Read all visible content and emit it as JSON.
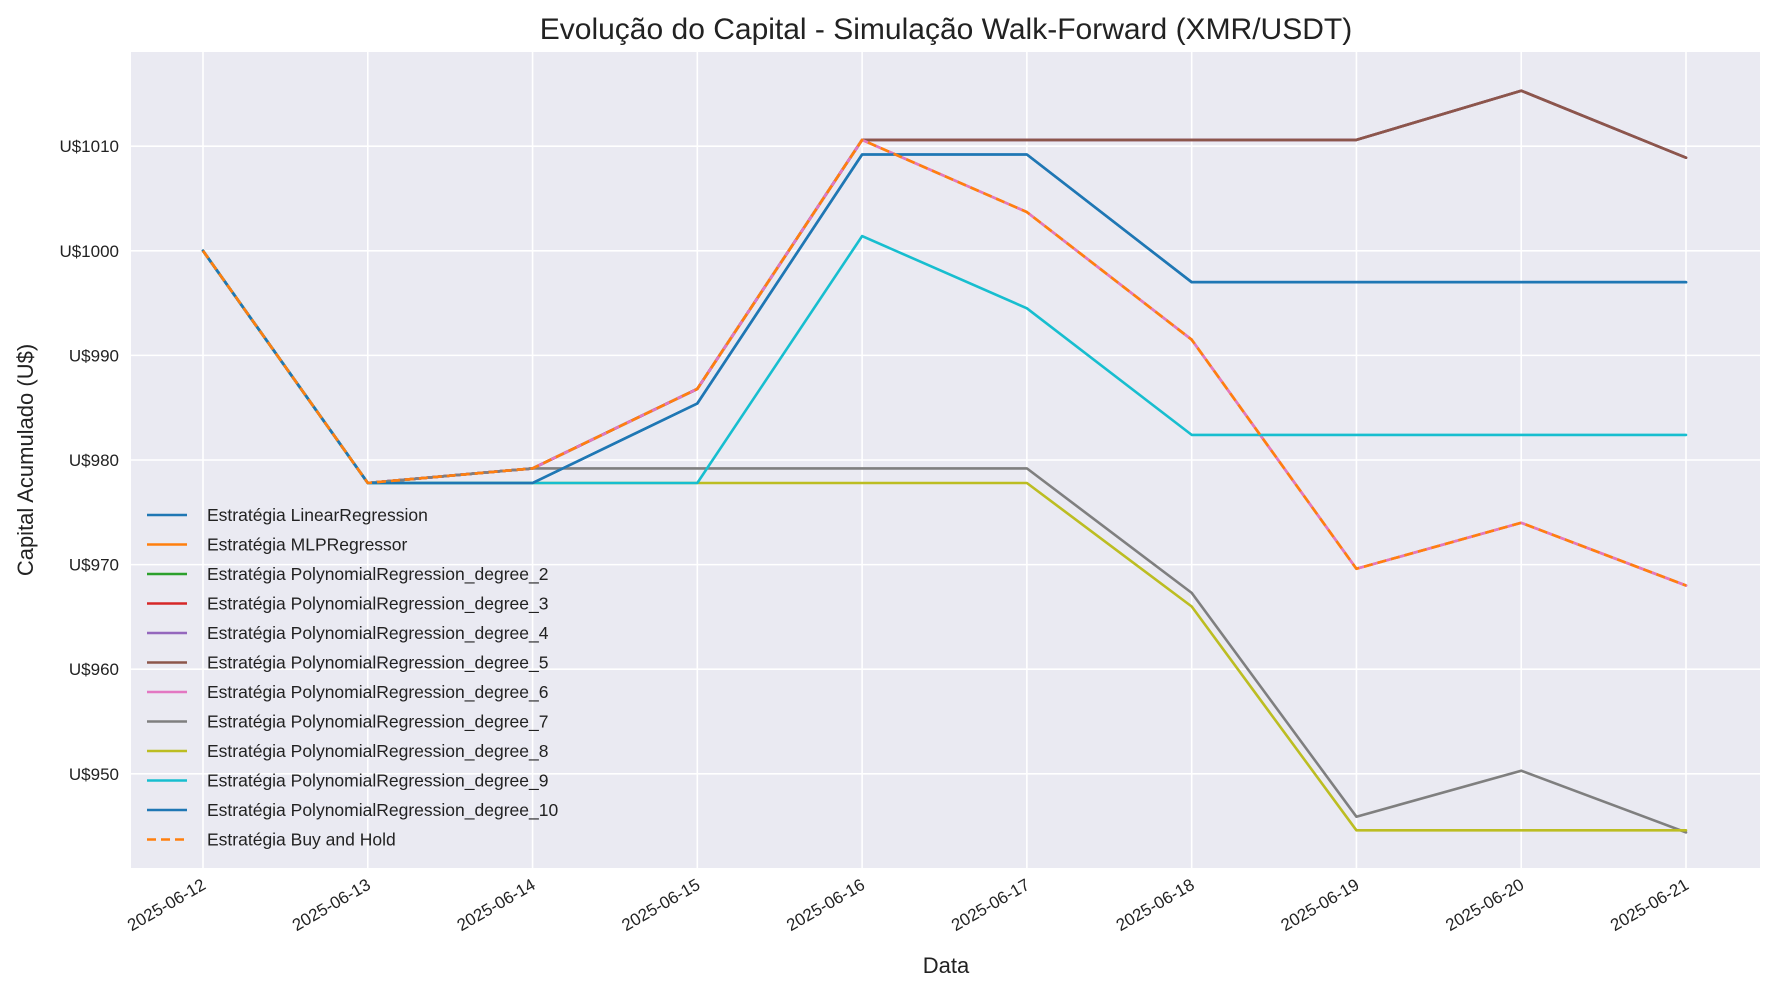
{
  "chart_data": {
    "type": "line",
    "title": "Evolução do Capital - Simulação Walk-Forward (XMR/USDT)",
    "xlabel": "Data",
    "ylabel": "Capital Acumulado (U$)",
    "x": [
      "2025-06-12",
      "2025-06-13",
      "2025-06-14",
      "2025-06-15",
      "2025-06-16",
      "2025-06-17",
      "2025-06-18",
      "2025-06-19",
      "2025-06-20",
      "2025-06-21"
    ],
    "ylim": [
      941,
      1019
    ],
    "yticks": [
      950,
      960,
      970,
      980,
      990,
      1000,
      1010
    ],
    "ytick_labels": [
      "U$950",
      "U$960",
      "U$970",
      "U$980",
      "U$990",
      "U$1000",
      "U$1010"
    ],
    "grid": true,
    "legend_position": "lower-left",
    "series": [
      {
        "name": "Estratégia LinearRegression",
        "color": "#1f77b4",
        "dash": "solid",
        "values": [
          1000,
          977.8,
          977.8,
          985.4,
          1009.2,
          1009.2,
          997.0,
          997.0,
          997.0,
          997.0
        ]
      },
      {
        "name": "Estratégia MLPRegressor",
        "color": "#ff7f0e",
        "dash": "solid",
        "values": [
          1000,
          977.8,
          979.2,
          986.8,
          1010.6,
          1003.7,
          991.5,
          969.6,
          974.0,
          968.0
        ]
      },
      {
        "name": "Estratégia PolynomialRegression_degree_2",
        "color": "#2ca02c",
        "dash": "solid",
        "values": [
          1000,
          977.8,
          979.2,
          986.8,
          1010.6,
          1010.6,
          1010.6,
          1010.6,
          1015.3,
          1008.9
        ]
      },
      {
        "name": "Estratégia PolynomialRegression_degree_3",
        "color": "#d62728",
        "dash": "solid",
        "values": [
          1000,
          977.8,
          979.2,
          986.8,
          1010.6,
          1010.6,
          1010.6,
          1010.6,
          1015.3,
          1008.9
        ]
      },
      {
        "name": "Estratégia PolynomialRegression_degree_4",
        "color": "#9467bd",
        "dash": "solid",
        "values": [
          1000,
          977.8,
          979.2,
          986.8,
          1010.6,
          1010.6,
          1010.6,
          1010.6,
          1015.3,
          1008.9
        ]
      },
      {
        "name": "Estratégia PolynomialRegression_degree_5",
        "color": "#8c564b",
        "dash": "solid",
        "values": [
          1000,
          977.8,
          979.2,
          986.8,
          1010.6,
          1010.6,
          1010.6,
          1010.6,
          1015.3,
          1008.9
        ]
      },
      {
        "name": "Estratégia PolynomialRegression_degree_6",
        "color": "#e377c2",
        "dash": "solid",
        "values": [
          1000,
          977.8,
          979.2,
          986.8,
          1010.6,
          1003.7,
          991.5,
          969.6,
          974.0,
          968.0
        ]
      },
      {
        "name": "Estratégia PolynomialRegression_degree_7",
        "color": "#7f7f7f",
        "dash": "solid",
        "values": [
          1000,
          977.8,
          979.2,
          979.2,
          979.2,
          979.2,
          967.3,
          945.9,
          950.3,
          944.4
        ]
      },
      {
        "name": "Estratégia PolynomialRegression_degree_8",
        "color": "#bcbd22",
        "dash": "solid",
        "values": [
          1000,
          977.8,
          977.8,
          977.8,
          977.8,
          977.8,
          966.0,
          944.6,
          944.6,
          944.6
        ]
      },
      {
        "name": "Estratégia PolynomialRegression_degree_9",
        "color": "#17becf",
        "dash": "solid",
        "values": [
          1000,
          977.8,
          977.8,
          977.8,
          1001.4,
          994.5,
          982.4,
          982.4,
          982.4,
          982.4
        ]
      },
      {
        "name": "Estratégia PolynomialRegression_degree_10",
        "color": "#1f77b4",
        "dash": "solid",
        "values": [
          1000,
          977.8,
          977.8,
          985.4,
          1009.2,
          1009.2,
          997.0,
          997.0,
          997.0,
          997.0
        ]
      },
      {
        "name": "Estratégia Buy and Hold",
        "color": "#ff7f0e",
        "dash": "dashed",
        "values": [
          1000,
          977.8,
          979.2,
          986.8,
          1010.6,
          1003.7,
          991.5,
          969.6,
          974.0,
          968.0
        ]
      }
    ]
  }
}
